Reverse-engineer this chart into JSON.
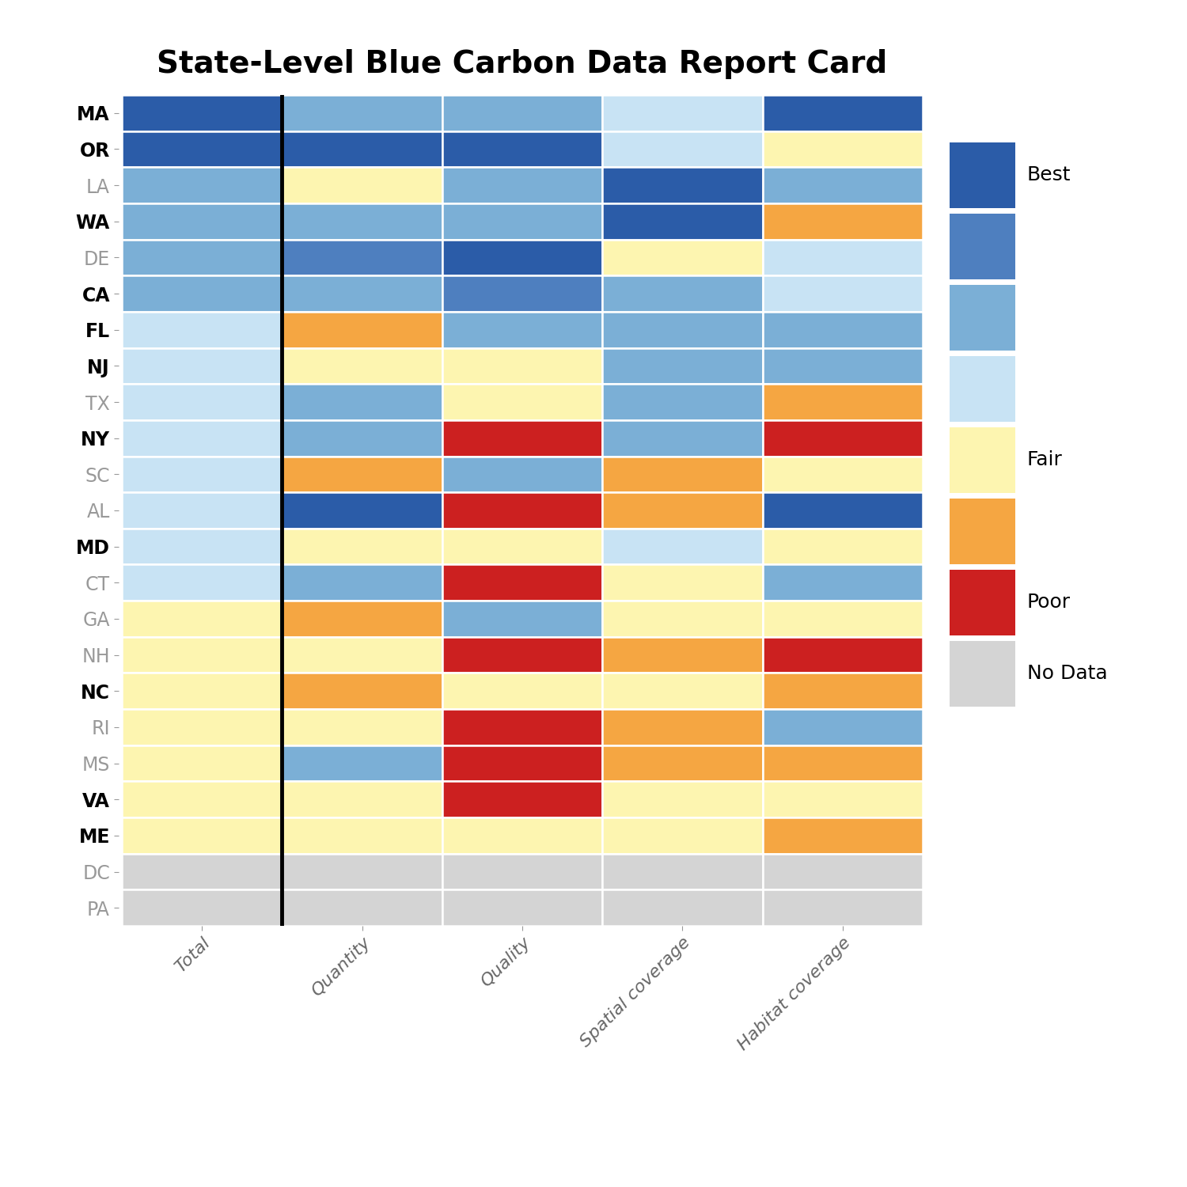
{
  "title": "State-Level Blue Carbon Data Report Card",
  "states": [
    "MA",
    "OR",
    "LA",
    "WA",
    "DE",
    "CA",
    "FL",
    "NJ",
    "TX",
    "NY",
    "SC",
    "AL",
    "MD",
    "CT",
    "GA",
    "NH",
    "NC",
    "RI",
    "MS",
    "VA",
    "ME",
    "DC",
    "PA"
  ],
  "columns": [
    "Total",
    "Quantity",
    "Quality",
    "Spatial coverage",
    "Habitat coverage"
  ],
  "bold_states": [
    "MA",
    "OR",
    "WA",
    "CA",
    "FL",
    "NJ",
    "NY",
    "MD",
    "NC",
    "VA",
    "ME"
  ],
  "gray_states": [
    "LA",
    "DE",
    "TX",
    "SC",
    "AL",
    "CT",
    "GA",
    "NH",
    "RI",
    "MS",
    "DC",
    "PA"
  ],
  "grid": [
    [
      1,
      3,
      3,
      4,
      1
    ],
    [
      1,
      1,
      1,
      4,
      5
    ],
    [
      3,
      5,
      3,
      1,
      3
    ],
    [
      3,
      3,
      3,
      1,
      6
    ],
    [
      3,
      2,
      1,
      5,
      4
    ],
    [
      3,
      3,
      2,
      3,
      4
    ],
    [
      4,
      6,
      3,
      3,
      3
    ],
    [
      4,
      5,
      5,
      3,
      3
    ],
    [
      4,
      3,
      5,
      3,
      6
    ],
    [
      4,
      3,
      7,
      3,
      7
    ],
    [
      4,
      6,
      3,
      6,
      5
    ],
    [
      4,
      1,
      7,
      6,
      1
    ],
    [
      4,
      5,
      5,
      4,
      5
    ],
    [
      4,
      3,
      7,
      5,
      3
    ],
    [
      5,
      6,
      3,
      5,
      5
    ],
    [
      5,
      5,
      7,
      6,
      7
    ],
    [
      5,
      6,
      5,
      5,
      6
    ],
    [
      5,
      5,
      7,
      6,
      3
    ],
    [
      5,
      3,
      7,
      6,
      6
    ],
    [
      5,
      5,
      7,
      5,
      5
    ],
    [
      5,
      5,
      5,
      5,
      6
    ],
    [
      8,
      8,
      8,
      8,
      8
    ],
    [
      8,
      8,
      8,
      8,
      8
    ]
  ],
  "color_map": {
    "1": "#2b5ca8",
    "2": "#4e7fbf",
    "3": "#7bafd6",
    "4": "#c8e3f4",
    "5": "#fdf5b0",
    "6": "#f5a642",
    "7": "#cc2020",
    "8": "#d4d4d4"
  },
  "legend_items": [
    [
      "#2b5ca8",
      "Best"
    ],
    [
      "#4e7fbf",
      ""
    ],
    [
      "#7bafd6",
      ""
    ],
    [
      "#c8e3f4",
      ""
    ],
    [
      "#fdf5b0",
      "Fair"
    ],
    [
      "#f5a642",
      ""
    ],
    [
      "#cc2020",
      "Poor"
    ],
    [
      "#d4d4d4",
      "No Data"
    ]
  ],
  "background_color": "#ffffff",
  "vline_x": 1,
  "title_fontsize": 28,
  "label_fontsize": 17,
  "xtick_fontsize": 16
}
